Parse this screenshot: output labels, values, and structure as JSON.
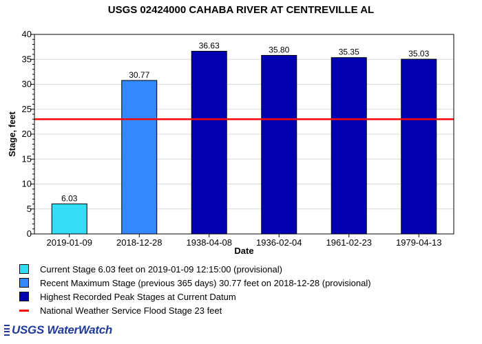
{
  "chart_data": {
    "type": "bar",
    "title": "USGS 02424000 CAHABA RIVER AT CENTREVILLE AL",
    "xlabel": "Date",
    "ylabel": "Stage, feet",
    "ylim": [
      0,
      40
    ],
    "yticks": [
      0,
      5,
      10,
      15,
      20,
      25,
      30,
      35,
      40
    ],
    "categories": [
      "2019-01-09",
      "2018-12-28",
      "1938-04-08",
      "1936-02-04",
      "1961-02-23",
      "1979-04-13"
    ],
    "values": [
      6.03,
      30.77,
      36.63,
      35.8,
      35.35,
      35.03
    ],
    "value_labels": [
      "6.03",
      "30.77",
      "36.63",
      "35.80",
      "35.35",
      "35.03"
    ],
    "bar_colors": [
      "#33ddf5",
      "#3388ff",
      "#0000b0",
      "#0000b0",
      "#0000b0",
      "#0000b0"
    ],
    "flood_stage": 23,
    "flood_line_color": "#ff0000",
    "grid": true
  },
  "legend": [
    {
      "label": "Current Stage 6.03 feet on 2019-01-09 12:15:00 (provisional)",
      "color": "#33ddf5",
      "kind": "box"
    },
    {
      "label": "Recent Maximum Stage (previous 365 days) 30.77 feet on 2018-12-28 (provisional)",
      "color": "#3388ff",
      "kind": "box"
    },
    {
      "label": "Highest Recorded Peak Stages at Current Datum",
      "color": "#0000b0",
      "kind": "box"
    },
    {
      "label": "National Weather Service Flood Stage 23 feet",
      "color": "#ff0000",
      "kind": "line"
    }
  ],
  "footer": {
    "logo_text": "USGS WaterWatch",
    "color": "#1f3a9a"
  }
}
